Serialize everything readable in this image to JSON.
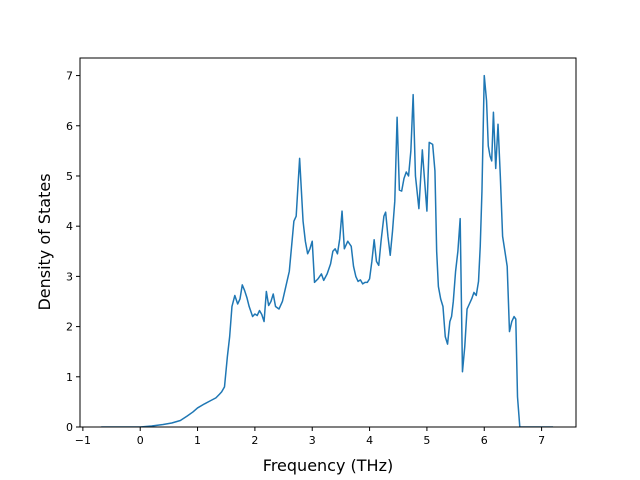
{
  "chart_data": {
    "type": "line",
    "title": "",
    "xlabel": "Frequency (THz)",
    "ylabel": "Density of States",
    "xlim": [
      -1.05,
      7.6
    ],
    "ylim": [
      0,
      7.35
    ],
    "x_ticks": [
      -1,
      0,
      1,
      2,
      3,
      4,
      5,
      6,
      7
    ],
    "y_ticks": [
      0,
      1,
      2,
      3,
      4,
      5,
      6,
      7
    ],
    "grid": false,
    "legend": "none",
    "series": [
      {
        "color": "#1f77b4",
        "x": [
          -0.68,
          -0.5,
          0,
          0.2,
          0.4,
          0.55,
          0.7,
          0.82,
          0.92,
          1.0,
          1.12,
          1.22,
          1.32,
          1.38,
          1.42,
          1.47,
          1.52,
          1.56,
          1.6,
          1.65,
          1.7,
          1.74,
          1.78,
          1.82,
          1.86,
          1.9,
          1.96,
          2.0,
          2.04,
          2.08,
          2.12,
          2.16,
          2.2,
          2.24,
          2.28,
          2.32,
          2.36,
          2.42,
          2.48,
          2.54,
          2.6,
          2.64,
          2.68,
          2.72,
          2.78,
          2.84,
          2.88,
          2.92,
          2.96,
          3.0,
          3.04,
          3.1,
          3.16,
          3.2,
          3.26,
          3.32,
          3.36,
          3.4,
          3.44,
          3.48,
          3.52,
          3.56,
          3.62,
          3.68,
          3.72,
          3.76,
          3.8,
          3.84,
          3.88,
          3.92,
          3.96,
          4.0,
          4.04,
          4.08,
          4.12,
          4.16,
          4.2,
          4.25,
          4.28,
          4.32,
          4.36,
          4.4,
          4.44,
          4.48,
          4.52,
          4.56,
          4.6,
          4.64,
          4.68,
          4.72,
          4.76,
          4.8,
          4.86,
          4.92,
          4.96,
          5.0,
          5.04,
          5.1,
          5.14,
          5.17,
          5.2,
          5.24,
          5.28,
          5.32,
          5.36,
          5.4,
          5.43,
          5.46,
          5.5,
          5.54,
          5.58,
          5.62,
          5.66,
          5.7,
          5.74,
          5.78,
          5.82,
          5.86,
          5.9,
          5.93,
          5.96,
          6.0,
          6.04,
          6.07,
          6.1,
          6.13,
          6.16,
          6.2,
          6.24,
          6.28,
          6.32,
          6.36,
          6.4,
          6.44,
          6.48,
          6.52,
          6.55,
          6.58,
          6.62,
          6.8,
          7.2
        ],
        "values": [
          0,
          0,
          0,
          0.02,
          0.05,
          0.08,
          0.13,
          0.22,
          0.3,
          0.38,
          0.46,
          0.52,
          0.58,
          0.65,
          0.7,
          0.8,
          1.4,
          1.8,
          2.4,
          2.62,
          2.45,
          2.55,
          2.83,
          2.72,
          2.58,
          2.4,
          2.2,
          2.25,
          2.22,
          2.32,
          2.24,
          2.1,
          2.7,
          2.42,
          2.5,
          2.65,
          2.4,
          2.35,
          2.5,
          2.8,
          3.1,
          3.6,
          4.1,
          4.2,
          5.35,
          4.1,
          3.7,
          3.45,
          3.55,
          3.7,
          2.88,
          2.95,
          3.05,
          2.92,
          3.05,
          3.25,
          3.5,
          3.55,
          3.45,
          3.75,
          4.3,
          3.55,
          3.7,
          3.6,
          3.2,
          3.0,
          2.9,
          2.93,
          2.85,
          2.88,
          2.88,
          2.95,
          3.3,
          3.73,
          3.3,
          3.22,
          3.7,
          4.2,
          4.28,
          3.8,
          3.42,
          3.9,
          4.5,
          6.17,
          4.72,
          4.7,
          4.95,
          5.08,
          5.0,
          5.5,
          6.62,
          5.0,
          4.35,
          5.52,
          4.9,
          4.3,
          5.67,
          5.63,
          5.1,
          3.5,
          2.8,
          2.55,
          2.4,
          1.8,
          1.65,
          2.1,
          2.2,
          2.5,
          3.1,
          3.5,
          4.15,
          1.1,
          1.6,
          2.35,
          2.45,
          2.55,
          2.68,
          2.62,
          2.9,
          3.6,
          4.7,
          7.0,
          6.5,
          5.6,
          5.4,
          5.3,
          6.27,
          5.15,
          6.03,
          5.0,
          3.8,
          3.5,
          3.2,
          1.9,
          2.1,
          2.2,
          2.15,
          0.6,
          0,
          0,
          0
        ]
      }
    ]
  }
}
